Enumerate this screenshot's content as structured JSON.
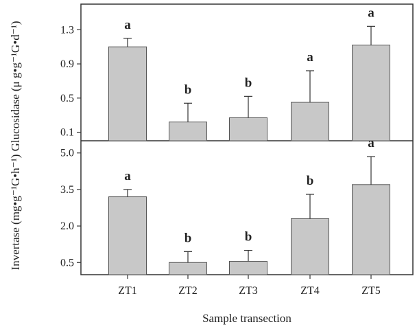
{
  "chart_data": {
    "type": "bar",
    "categories": [
      "ZT1",
      "ZT2",
      "ZT3",
      "ZT4",
      "ZT5"
    ],
    "xlabel": "Sample transection",
    "ylabel": "Invertase (mg•g⁻¹G•h⁻¹) Glucosidase (μ g•g⁻¹G•d⁻¹)",
    "colors": {
      "bar": "#c8c8c8",
      "bar_stroke": "#555555",
      "axis": "#333333"
    },
    "panels": [
      {
        "name": "Glucosidase",
        "ylim": [
          0.0,
          1.6
        ],
        "yticks": [
          "0.1",
          "0.5",
          "0.9",
          "1.3"
        ],
        "values": [
          1.1,
          0.22,
          0.27,
          0.45,
          1.12
        ],
        "errors": [
          0.1,
          0.22,
          0.25,
          0.37,
          0.22
        ],
        "significance": [
          "a",
          "b",
          "b",
          "a",
          "a"
        ]
      },
      {
        "name": "Invertase",
        "ylim": [
          0.0,
          5.5
        ],
        "yticks": [
          "0.5",
          "2.0",
          "3.5",
          "5.0"
        ],
        "values": [
          3.2,
          0.5,
          0.55,
          2.3,
          3.7
        ],
        "errors": [
          0.3,
          0.45,
          0.45,
          1.0,
          1.15
        ],
        "significance": [
          "a",
          "b",
          "b",
          "b",
          "a"
        ]
      }
    ]
  }
}
